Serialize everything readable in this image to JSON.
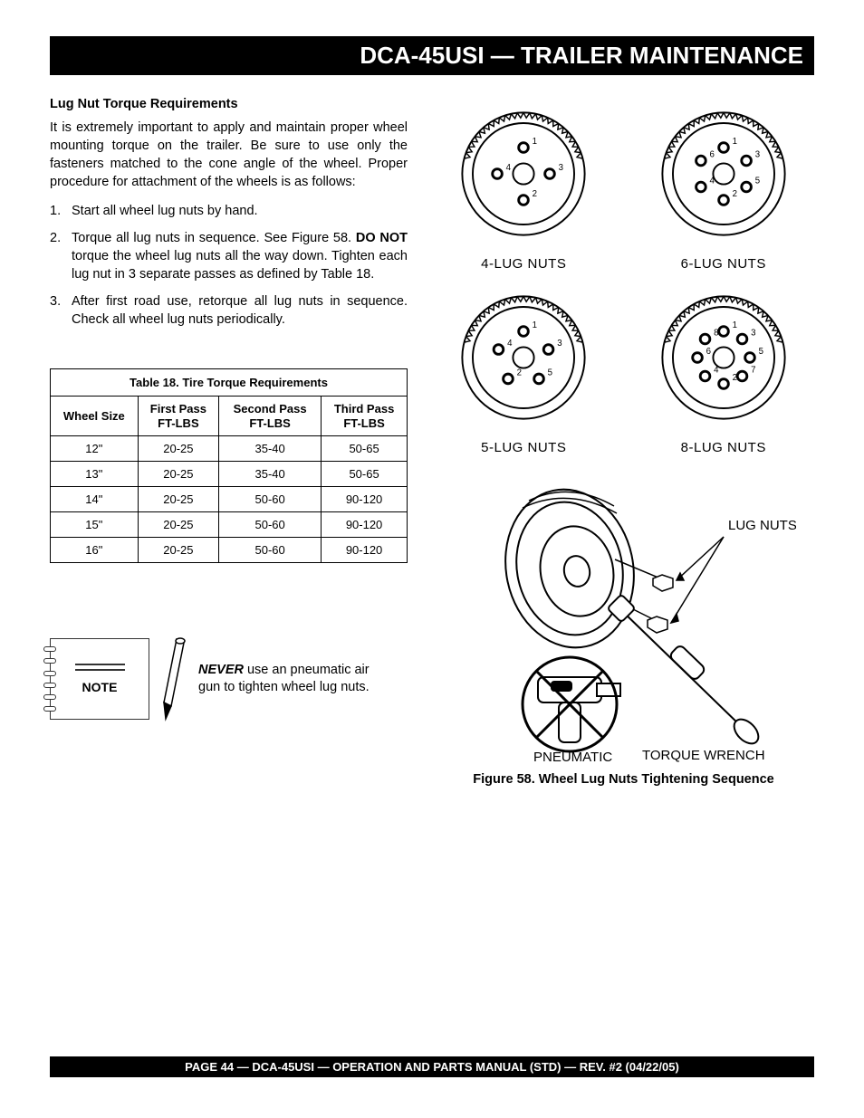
{
  "header": {
    "title": "DCA-45USI — TRAILER MAINTENANCE"
  },
  "section": {
    "heading": "Lug Nut Torque Requirements",
    "intro": "It is extremely important to apply and maintain proper wheel mounting torque on the trailer. Be sure to use only the fasteners matched to the cone angle of the wheel. Proper procedure for attachment of the wheels is as follows:",
    "steps": [
      "Start all wheel lug nuts by hand.",
      "Torque all lug nuts in sequence.  See Figure 58.  <b>DO NOT</b> torque the wheel lug nuts all the way down.  Tighten each lug nut in 3 separate passes as defined by Table 18.",
      "After first road use, retorque all lug nuts in sequence. Check all wheel lug nuts periodically."
    ]
  },
  "table": {
    "title": "Table 18.  Tire Torque Requirements",
    "columns": [
      "Wheel Size",
      "First Pass\nFT-LBS",
      "Second Pass\nFT-LBS",
      "Third Pass\nFT-LBS"
    ],
    "rows": [
      [
        "12\"",
        "20-25",
        "35-40",
        "50-65"
      ],
      [
        "13\"",
        "20-25",
        "35-40",
        "50-65"
      ],
      [
        "14\"",
        "20-25",
        "50-60",
        "90-120"
      ],
      [
        "15\"",
        "20-25",
        "50-60",
        "90-120"
      ],
      [
        "16\"",
        "20-25",
        "50-60",
        "90-120"
      ]
    ],
    "border_color": "#000000",
    "font_size": 13
  },
  "note": {
    "label": "NOTE",
    "never": "NEVER",
    "text": " use an pneumatic air gun to tighten wheel lug nuts."
  },
  "wheels": {
    "items": [
      {
        "label": "4-LUG NUTS",
        "count": 4,
        "sequence": [
          1,
          3,
          2,
          4
        ]
      },
      {
        "label": "6-LUG NUTS",
        "count": 6,
        "sequence": [
          1,
          3,
          5,
          2,
          4,
          6
        ]
      },
      {
        "label": "5-LUG NUTS",
        "count": 5,
        "sequence": [
          1,
          3,
          5,
          2,
          4
        ]
      },
      {
        "label": "8-LUG NUTS",
        "count": 8,
        "sequence": [
          1,
          3,
          5,
          7,
          2,
          4,
          6,
          8
        ]
      }
    ],
    "tire_stroke": "#000000",
    "lug_fill": "#000000"
  },
  "tool_figure": {
    "label_lugnuts": "LUG NUTS",
    "label_pneumatic": "PNEUMATIC\nAIR GUN",
    "label_torque": "TORQUE WRENCH",
    "caption": "Figure 58.  Wheel Lug Nuts Tightening Sequence"
  },
  "footer": {
    "text": "PAGE 44 — DCA-45USI —   OPERATION AND PARTS  MANUAL  (STD) — REV. #2 (04/22/05)"
  }
}
